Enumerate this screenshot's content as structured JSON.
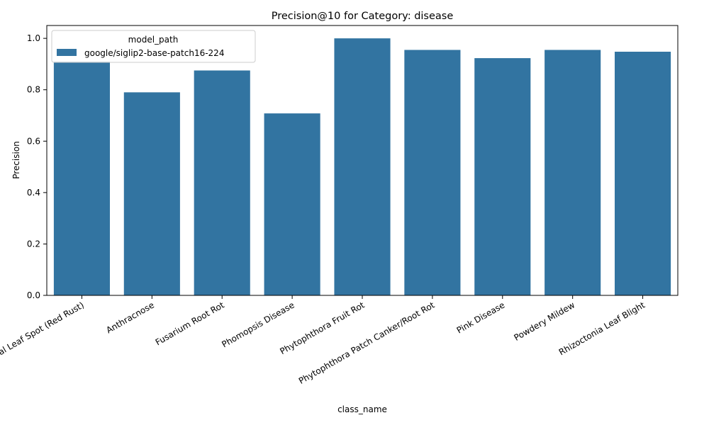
{
  "chart_data": {
    "type": "bar",
    "title": "Precision@10 for Category: disease",
    "xlabel": "class_name",
    "ylabel": "Precision",
    "ylim": [
      0,
      1.05
    ],
    "yticks": [
      "0.0",
      "0.2",
      "0.4",
      "0.6",
      "0.8",
      "1.0"
    ],
    "categories": [
      "Algal Leaf Spot (Red Rust)",
      "Anthracnose",
      "Fusarium Root Rot",
      "Phomopsis Disease",
      "Phytophthora Fruit Rot",
      "Phytophthora Patch Canker/Root Rot",
      "Pink Disease",
      "Powdery Mildew",
      "Rhizoctonia Leaf Blight"
    ],
    "series": [
      {
        "name": "google/siglip2-base-patch16-224",
        "values": [
          0.91,
          0.79,
          0.875,
          0.708,
          1.0,
          0.955,
          0.923,
          0.955,
          0.948
        ]
      }
    ],
    "legend": {
      "title": "model_path",
      "placement": "top-left"
    },
    "colors": {
      "bar": "#3274a1"
    },
    "grid": false
  }
}
